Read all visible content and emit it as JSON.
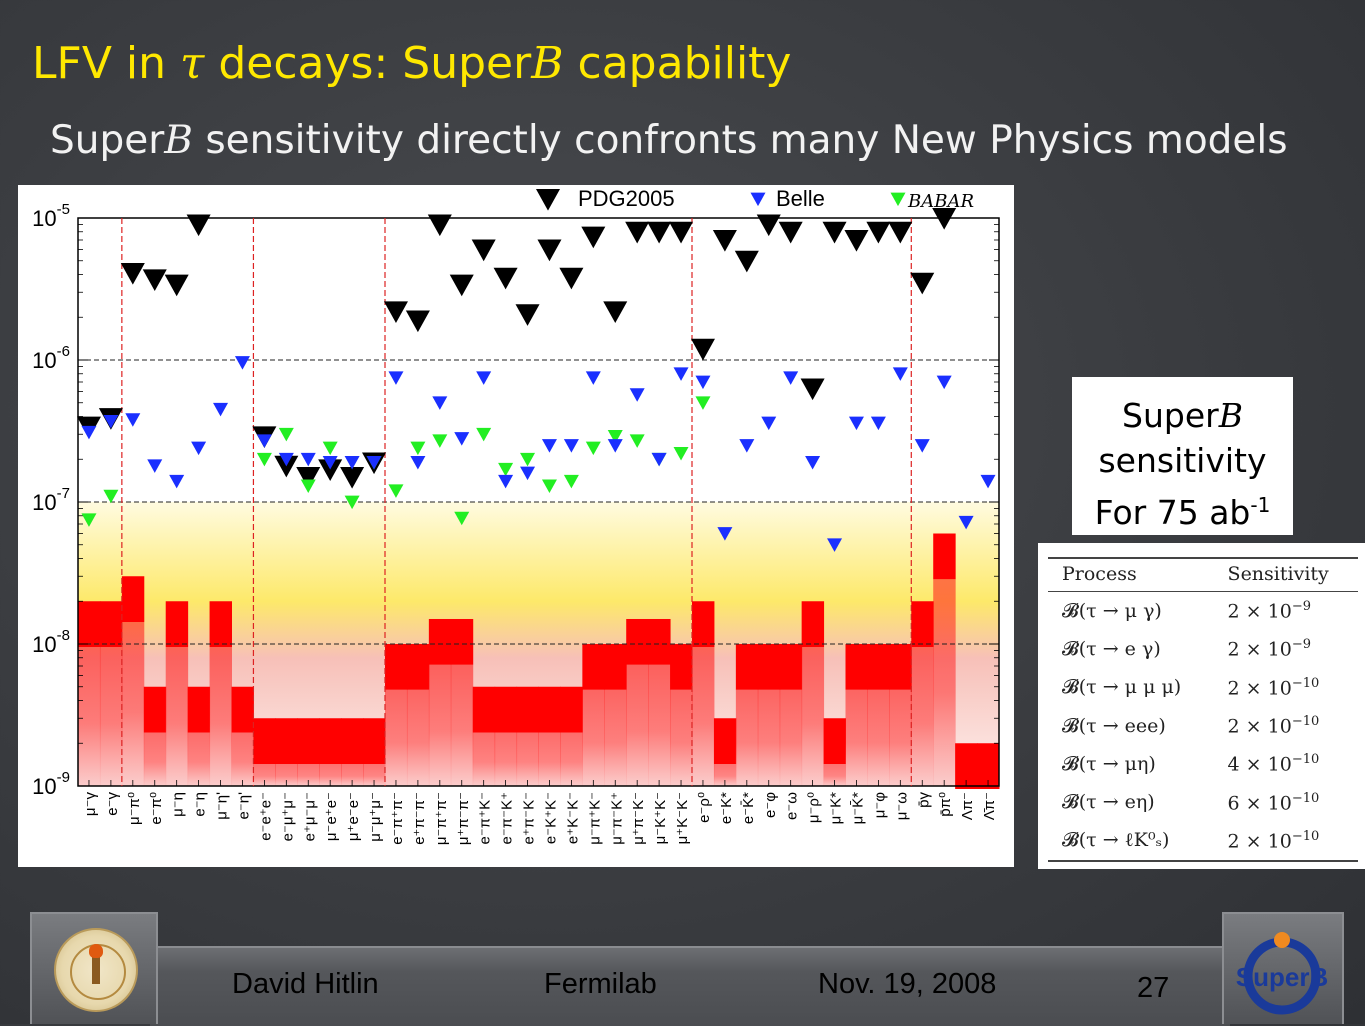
{
  "slide": {
    "title_prefix": "LFV in ",
    "title_tau": "τ",
    "title_mid": " decays: Super",
    "title_b": "B",
    "title_suffix": " capability",
    "subtitle_prefix": "Super",
    "subtitle_b": "B",
    "subtitle_suffix": " sensitivity directly confronts many New Physics models"
  },
  "sensitivity_label": {
    "line1_prefix": "Super",
    "line1_b": "B",
    "line2": "sensitivity",
    "line3_prefix": "For 75 ab",
    "line3_sup": "-1"
  },
  "sensitivity_table": {
    "headers": [
      "Process",
      "Sensitivity"
    ],
    "rows": [
      {
        "process": "𝓑(τ → μ γ)",
        "sens_base": "2 × 10",
        "sens_exp": "−9"
      },
      {
        "process": "𝓑(τ → e γ)",
        "sens_base": "2 × 10",
        "sens_exp": "−9"
      },
      {
        "process": "𝓑(τ → μ μ μ)",
        "sens_base": "2 × 10",
        "sens_exp": "−10"
      },
      {
        "process": "𝓑(τ → eee)",
        "sens_base": "2 × 10",
        "sens_exp": "−10"
      },
      {
        "process": "𝓑(τ → μη)",
        "sens_base": "4 × 10",
        "sens_exp": "−10"
      },
      {
        "process": "𝓑(τ → eη)",
        "sens_base": "6 × 10",
        "sens_exp": "−10"
      },
      {
        "process": "𝓑(τ → ℓK⁰ₛ)",
        "sens_base": "2 × 10",
        "sens_exp": "−10"
      }
    ]
  },
  "footer": {
    "author": "David Hitlin",
    "venue": "Fermilab",
    "date": "Nov. 19, 2008",
    "page": "27",
    "logo_text": "SuperB"
  },
  "chart_data": {
    "type": "scatter",
    "yscale": "log",
    "ylim": [
      1e-09,
      1e-05
    ],
    "ytick_labels": [
      "10-9",
      "10-8",
      "10-7",
      "10-6",
      "10-5"
    ],
    "grid": "dashed at 1e-8, 1e-7, 1e-6",
    "legend": [
      "PDG2005",
      "Belle",
      "BABAR"
    ],
    "legend_placement": "top",
    "colors": {
      "PDG2005": "#000000",
      "Belle": "#1a2fff",
      "BABAR": "#22ee22",
      "band": "#ff0000",
      "group_line": "#dd2222"
    },
    "channels": [
      "μ⁻γ",
      "e⁻γ",
      "μ⁻π⁰",
      "e⁻π⁰",
      "μ⁻η",
      "e⁻η",
      "μ⁻η'",
      "e⁻η'",
      "e⁻e⁺e⁻",
      "e⁻μ⁺μ⁻",
      "e⁺μ⁻μ⁻",
      "μ⁻e⁺e⁻",
      "μ⁺e⁻e⁻",
      "μ⁻μ⁺μ⁻",
      "e⁻π⁺π⁻",
      "e⁺π⁻π⁻",
      "μ⁻π⁺π⁻",
      "μ⁺π⁻π⁻",
      "e⁻π⁺K⁻",
      "e⁻π⁻K⁺",
      "e⁺π⁻K⁻",
      "e⁻K⁺K⁻",
      "e⁺K⁻K⁻",
      "μ⁻π⁺K⁻",
      "μ⁻π⁻K⁺",
      "μ⁺π⁻K⁻",
      "μ⁻K⁺K⁻",
      "μ⁺K⁻K⁻",
      "e⁻ρ⁰",
      "e⁻K*",
      "e⁻K̄*",
      "e⁻φ",
      "e⁻ω",
      "μ⁻ρ⁰",
      "μ⁻K*",
      "μ⁻K̄*",
      "μ⁻φ",
      "μ⁻ω",
      "p̄γ",
      "p̄π⁰",
      "Λπ⁻",
      "Λ̄π⁻"
    ],
    "group_boundaries_after_index": [
      1,
      7,
      13,
      27,
      37
    ],
    "series": [
      {
        "name": "PDG2005",
        "values": [
          3.4e-07,
          3.9e-07,
          4.1e-06,
          3.7e-06,
          3.4e-06,
          9e-06,
          null,
          null,
          2.9e-07,
          1.8e-07,
          1.5e-07,
          1.7e-07,
          1.5e-07,
          1.9e-07,
          2.2e-06,
          1.9e-06,
          9e-06,
          3.4e-06,
          6e-06,
          3.8e-06,
          2.1e-06,
          6e-06,
          3.8e-06,
          7.4e-06,
          2.2e-06,
          8e-06,
          8e-06,
          8e-06,
          1.2e-06,
          7e-06,
          5e-06,
          9e-06,
          8e-06,
          6.3e-07,
          8e-06,
          7e-06,
          8e-06,
          8e-06,
          3.5e-06,
          1e-05,
          null,
          null
        ]
      },
      {
        "name": "Belle",
        "values": [
          3.1e-07,
          3.7e-07,
          3.8e-07,
          1.8e-07,
          1.4e-07,
          2.4e-07,
          4.5e-07,
          9.6e-07,
          2.7e-07,
          2e-07,
          2e-07,
          1.9e-07,
          1.9e-07,
          1.9e-07,
          7.5e-07,
          1.9e-07,
          5e-07,
          2.8e-07,
          7.5e-07,
          1.4e-07,
          1.6e-07,
          2.5e-07,
          2.5e-07,
          7.5e-07,
          2.5e-07,
          5.7e-07,
          2e-07,
          8e-07,
          7e-07,
          6e-08,
          2.5e-07,
          3.6e-07,
          7.5e-07,
          1.9e-07,
          5e-08,
          3.6e-07,
          3.6e-07,
          8e-07,
          2.5e-07,
          7e-07,
          7.2e-08,
          1.4e-07
        ]
      },
      {
        "name": "BABAR",
        "values": [
          7.5e-08,
          1.1e-07,
          null,
          null,
          null,
          null,
          null,
          null,
          2e-07,
          3e-07,
          1.3e-07,
          2.4e-07,
          1e-07,
          1.9e-07,
          1.2e-07,
          2.4e-07,
          2.7e-07,
          7.7e-08,
          3e-07,
          1.7e-07,
          2e-07,
          1.3e-07,
          1.4e-07,
          2.4e-07,
          2.9e-07,
          2.7e-07,
          2e-07,
          2.2e-07,
          5e-07,
          null,
          null,
          null,
          null,
          null,
          null,
          null,
          null,
          null,
          null,
          null,
          null,
          null
        ]
      },
      {
        "name": "SuperB sensitivity (75 ab-1)",
        "values": [
          2e-08,
          2e-08,
          3e-08,
          5e-09,
          2e-08,
          5e-09,
          2e-08,
          5e-09,
          3e-09,
          3e-09,
          3e-09,
          3e-09,
          3e-09,
          3e-09,
          1e-08,
          1e-08,
          1.5e-08,
          1.5e-08,
          5e-09,
          5e-09,
          5e-09,
          5e-09,
          5e-09,
          1e-08,
          1e-08,
          1.5e-08,
          1.5e-08,
          1e-08,
          2e-08,
          3e-09,
          1e-08,
          1e-08,
          1e-08,
          2e-08,
          3e-09,
          1e-08,
          1e-08,
          1e-08,
          2e-08,
          6e-08,
          2e-09,
          2e-09
        ]
      }
    ]
  }
}
